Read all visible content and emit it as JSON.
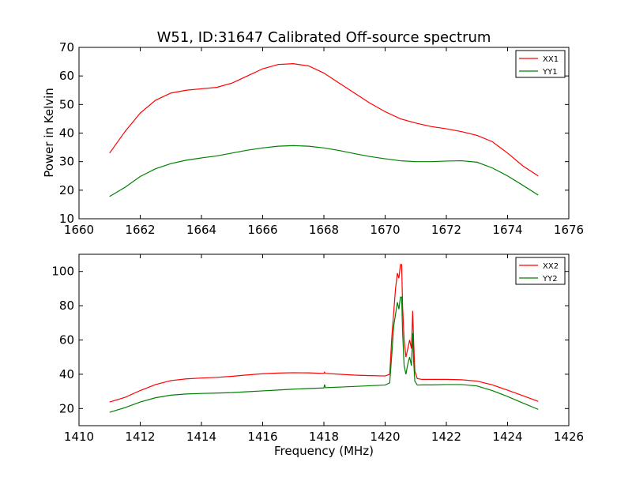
{
  "chart_data": [
    {
      "type": "line",
      "title": "W51, ID:31647 Calibrated Off-source spectrum",
      "xlabel": "",
      "ylabel": "Power in Kelvin",
      "xlim": [
        1660,
        1676
      ],
      "ylim": [
        10,
        70
      ],
      "xticks": [
        "1660",
        "1662",
        "1664",
        "1666",
        "1668",
        "1670",
        "1672",
        "1674",
        "1676"
      ],
      "yticks": [
        "10",
        "20",
        "30",
        "40",
        "50",
        "60",
        "70"
      ],
      "legend_position": "top-right",
      "series": [
        {
          "name": "XX1",
          "color": "#ff0000",
          "x": [
            1661.0,
            1661.5,
            1662.0,
            1662.5,
            1663.0,
            1663.5,
            1664.0,
            1664.5,
            1665.0,
            1665.5,
            1666.0,
            1666.5,
            1667.0,
            1667.5,
            1668.0,
            1668.5,
            1669.0,
            1669.5,
            1670.0,
            1670.5,
            1671.0,
            1671.5,
            1672.0,
            1672.5,
            1673.0,
            1673.5,
            1674.0,
            1674.5,
            1675.0
          ],
          "values": [
            33.0,
            40.5,
            47.0,
            51.5,
            54.0,
            55.0,
            55.5,
            56.0,
            57.5,
            60.0,
            62.5,
            64.0,
            64.3,
            63.5,
            61.0,
            57.5,
            54.0,
            50.5,
            47.5,
            45.0,
            43.5,
            42.3,
            41.5,
            40.5,
            39.2,
            37.0,
            33.0,
            28.5,
            25.0
          ]
        },
        {
          "name": "YY1",
          "color": "#008000",
          "x": [
            1661.0,
            1661.5,
            1662.0,
            1662.5,
            1663.0,
            1663.5,
            1664.0,
            1664.5,
            1665.0,
            1665.5,
            1666.0,
            1666.5,
            1667.0,
            1667.5,
            1668.0,
            1668.5,
            1669.0,
            1669.5,
            1670.0,
            1670.5,
            1671.0,
            1671.5,
            1672.0,
            1672.5,
            1673.0,
            1673.5,
            1674.0,
            1674.5,
            1675.0
          ],
          "values": [
            17.8,
            21.0,
            24.8,
            27.5,
            29.3,
            30.5,
            31.3,
            32.0,
            33.0,
            34.0,
            34.8,
            35.4,
            35.6,
            35.4,
            34.8,
            33.9,
            32.8,
            31.8,
            31.0,
            30.3,
            30.0,
            30.0,
            30.2,
            30.3,
            29.8,
            27.8,
            25.0,
            21.7,
            18.3
          ]
        }
      ]
    },
    {
      "type": "line",
      "title": "",
      "xlabel": "Frequency (MHz)",
      "ylabel": "",
      "xlim": [
        1410,
        1426
      ],
      "ylim": [
        10,
        110
      ],
      "xticks": [
        "1410",
        "1412",
        "1414",
        "1416",
        "1418",
        "1420",
        "1422",
        "1424",
        "1426"
      ],
      "yticks": [
        "20",
        "40",
        "60",
        "80",
        "100"
      ],
      "legend_position": "top-right",
      "series": [
        {
          "name": "XX2",
          "color": "#ff0000",
          "x": [
            1411.0,
            1411.5,
            1412.0,
            1412.5,
            1413.0,
            1413.5,
            1414.0,
            1414.5,
            1415.0,
            1415.5,
            1416.0,
            1416.5,
            1417.0,
            1417.5,
            1418.0,
            1418.02,
            1418.05,
            1418.5,
            1419.0,
            1419.5,
            1420.0,
            1420.15,
            1420.22,
            1420.28,
            1420.34,
            1420.4,
            1420.45,
            1420.5,
            1420.54,
            1420.57,
            1420.62,
            1420.68,
            1420.74,
            1420.8,
            1420.86,
            1420.9,
            1420.93,
            1420.97,
            1421.05,
            1421.2,
            1421.5,
            1422.0,
            1422.5,
            1423.0,
            1423.5,
            1424.0,
            1424.5,
            1425.0
          ],
          "values": [
            23.8,
            26.5,
            30.5,
            34.0,
            36.3,
            37.3,
            37.8,
            38.2,
            38.8,
            39.6,
            40.3,
            40.7,
            40.9,
            40.8,
            40.5,
            41.2,
            40.5,
            40.0,
            39.5,
            39.2,
            39.0,
            40.0,
            62.0,
            76.0,
            90.0,
            99.0,
            96.0,
            104.0,
            104.0,
            80.0,
            60.0,
            50.0,
            55.0,
            60.0,
            55.0,
            77.0,
            60.0,
            42.0,
            37.5,
            37.0,
            37.0,
            37.0,
            36.8,
            36.0,
            33.8,
            30.7,
            27.5,
            24.2
          ]
        },
        {
          "name": "YY2",
          "color": "#008000",
          "x": [
            1411.0,
            1411.5,
            1412.0,
            1412.5,
            1413.0,
            1413.5,
            1414.0,
            1414.5,
            1415.0,
            1415.5,
            1416.0,
            1416.5,
            1417.0,
            1417.5,
            1418.0,
            1418.02,
            1418.05,
            1418.5,
            1419.0,
            1419.5,
            1420.0,
            1420.15,
            1420.22,
            1420.28,
            1420.34,
            1420.4,
            1420.45,
            1420.5,
            1420.54,
            1420.57,
            1420.62,
            1420.68,
            1420.74,
            1420.8,
            1420.86,
            1420.9,
            1420.93,
            1420.97,
            1421.05,
            1421.2,
            1421.5,
            1422.0,
            1422.5,
            1423.0,
            1423.5,
            1424.0,
            1424.5,
            1425.0
          ],
          "values": [
            17.8,
            20.5,
            23.8,
            26.3,
            27.8,
            28.5,
            28.8,
            29.0,
            29.3,
            29.8,
            30.3,
            30.8,
            31.3,
            31.7,
            32.0,
            34.0,
            32.2,
            32.5,
            32.9,
            33.3,
            33.7,
            35.0,
            52.0,
            68.0,
            75.0,
            82.0,
            78.0,
            85.0,
            85.0,
            65.0,
            45.0,
            40.0,
            46.0,
            50.0,
            45.0,
            64.0,
            48.0,
            36.0,
            33.7,
            33.8,
            33.8,
            34.0,
            34.0,
            33.2,
            30.5,
            27.0,
            23.2,
            19.5
          ]
        }
      ]
    }
  ]
}
